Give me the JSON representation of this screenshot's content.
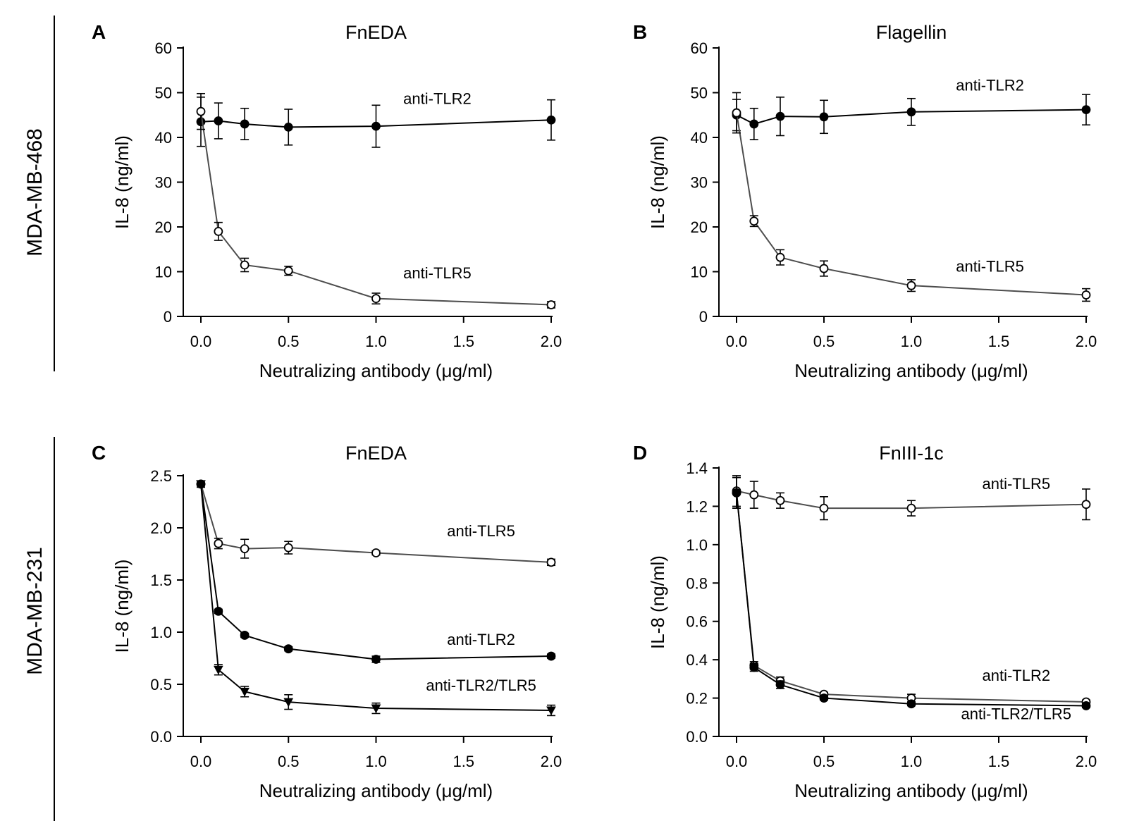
{
  "rows": [
    {
      "label": "MDA-MB-468"
    },
    {
      "label": "MDA-MB-231"
    }
  ],
  "colors": {
    "axis": "#000000",
    "line_closed": "#000000",
    "line_open": "#4d4d4d",
    "marker_open_fill": "#ffffff"
  },
  "chart_data": [
    {
      "panel": "A",
      "type": "line",
      "title": "FnEDA",
      "xlabel": "Neutralizing antibody (μg/ml)",
      "ylabel": "IL-8 (ng/ml)",
      "xlim": [
        -0.05,
        2.0
      ],
      "ylim": [
        0,
        60
      ],
      "xticks": [
        0.0,
        0.5,
        1.0,
        1.5,
        2.0
      ],
      "xtick_labels": [
        "0.0",
        "0.5",
        "1.0",
        "1.5",
        "2.0"
      ],
      "yticks": [
        0,
        10,
        20,
        30,
        40,
        50,
        60
      ],
      "ytick_labels": [
        "0",
        "10",
        "20",
        "30",
        "40",
        "50",
        "60"
      ],
      "series": [
        {
          "name": "anti-TLR2",
          "marker": "filled-circle",
          "x": [
            0,
            0.1,
            0.25,
            0.5,
            1.0,
            2.0
          ],
          "y": [
            43.5,
            43.7,
            43.0,
            42.3,
            42.5,
            43.9
          ],
          "err": [
            5.5,
            4.0,
            3.5,
            4.0,
            4.7,
            4.5
          ],
          "label_pos": {
            "x": 1.35,
            "y": 47.5
          }
        },
        {
          "name": "anti-TLR5",
          "marker": "open-circle",
          "x": [
            0,
            0.1,
            0.25,
            0.5,
            1.0,
            2.0
          ],
          "y": [
            45.8,
            19.0,
            11.5,
            10.2,
            4.0,
            2.6
          ],
          "err": [
            4.0,
            2.0,
            1.5,
            1.0,
            1.2,
            0.7
          ],
          "label_pos": {
            "x": 1.35,
            "y": 8.5
          }
        }
      ]
    },
    {
      "panel": "B",
      "type": "line",
      "title": "Flagellin",
      "xlabel": "Neutralizing antibody (μg/ml)",
      "ylabel": "IL-8 (ng/ml)",
      "xlim": [
        -0.05,
        2.0
      ],
      "ylim": [
        0,
        60
      ],
      "xticks": [
        0.0,
        0.5,
        1.0,
        1.5,
        2.0
      ],
      "xtick_labels": [
        "0.0",
        "0.5",
        "1.0",
        "1.5",
        "2.0"
      ],
      "yticks": [
        0,
        10,
        20,
        30,
        40,
        50,
        60
      ],
      "ytick_labels": [
        "0",
        "10",
        "20",
        "30",
        "40",
        "50",
        "60"
      ],
      "series": [
        {
          "name": "anti-TLR2",
          "marker": "filled-circle",
          "x": [
            0,
            0.1,
            0.25,
            0.5,
            1.0,
            2.0
          ],
          "y": [
            45.0,
            43.0,
            44.7,
            44.6,
            45.7,
            46.2
          ],
          "err": [
            3.5,
            3.5,
            4.3,
            3.7,
            3.0,
            3.4
          ],
          "label_pos": {
            "x": 1.45,
            "y": 50.5
          }
        },
        {
          "name": "anti-TLR5",
          "marker": "open-circle",
          "x": [
            0,
            0.1,
            0.25,
            0.5,
            1.0,
            2.0
          ],
          "y": [
            45.5,
            21.3,
            13.2,
            10.7,
            6.9,
            4.8
          ],
          "err": [
            4.5,
            1.2,
            1.7,
            1.7,
            1.3,
            1.4
          ],
          "label_pos": {
            "x": 1.45,
            "y": 10.0
          }
        }
      ]
    },
    {
      "panel": "C",
      "type": "line",
      "title": "FnEDA",
      "xlabel": "Neutralizing antibody (μg/ml)",
      "ylabel": "IL-8 (ng/ml)",
      "xlim": [
        -0.05,
        2.0
      ],
      "ylim": [
        0,
        2.5
      ],
      "xticks": [
        0.0,
        0.5,
        1.0,
        1.5,
        2.0
      ],
      "xtick_labels": [
        "0.0",
        "0.5",
        "1.0",
        "1.5",
        "2.0"
      ],
      "yticks": [
        0,
        0.5,
        1.0,
        1.5,
        2.0,
        2.5
      ],
      "ytick_labels": [
        "0.0",
        "0.5",
        "1.0",
        "1.5",
        "2.0",
        "2.5"
      ],
      "series": [
        {
          "name": "anti-TLR5",
          "marker": "open-circle",
          "x": [
            0,
            0.1,
            0.25,
            0.5,
            1.0,
            2.0
          ],
          "y": [
            2.42,
            1.85,
            1.8,
            1.81,
            1.76,
            1.67
          ],
          "err": [
            0.03,
            0.05,
            0.09,
            0.06,
            0.02,
            0.03
          ],
          "label_pos": {
            "x": 1.6,
            "y": 1.92
          }
        },
        {
          "name": "anti-TLR2",
          "marker": "filled-circle",
          "x": [
            0,
            0.1,
            0.25,
            0.5,
            1.0,
            2.0
          ],
          "y": [
            2.42,
            1.2,
            0.97,
            0.84,
            0.74,
            0.77
          ],
          "err": [
            0.03,
            0.02,
            0.02,
            0.02,
            0.03,
            0.02
          ],
          "label_pos": {
            "x": 1.6,
            "y": 0.88
          }
        },
        {
          "name": "anti-TLR2/TLR5",
          "marker": "filled-triangle",
          "x": [
            0,
            0.1,
            0.25,
            0.5,
            1.0,
            2.0
          ],
          "y": [
            2.42,
            0.64,
            0.43,
            0.33,
            0.27,
            0.25
          ],
          "err": [
            0.03,
            0.05,
            0.05,
            0.07,
            0.05,
            0.05
          ],
          "label_pos": {
            "x": 1.6,
            "y": 0.44
          }
        }
      ]
    },
    {
      "panel": "D",
      "type": "line",
      "title": "FnIII-1c",
      "xlabel": "Neutralizing antibody (μg/ml)",
      "ylabel": "IL-8 (ng/ml)",
      "xlim": [
        -0.05,
        2.0
      ],
      "ylim": [
        0,
        1.4
      ],
      "xticks": [
        0.0,
        0.5,
        1.0,
        1.5,
        2.0
      ],
      "xtick_labels": [
        "0.0",
        "0.5",
        "1.0",
        "1.5",
        "2.0"
      ],
      "yticks": [
        0,
        0.2,
        0.4,
        0.6,
        0.8,
        1.0,
        1.2,
        1.4
      ],
      "ytick_labels": [
        "0.0",
        "0.2",
        "0.4",
        "0.6",
        "0.8",
        "1.0",
        "1.2",
        "1.4"
      ],
      "series": [
        {
          "name": "anti-TLR5",
          "marker": "open-circle",
          "x": [
            0,
            0.1,
            0.25,
            0.5,
            1.0,
            2.0
          ],
          "y": [
            1.28,
            1.26,
            1.23,
            1.19,
            1.19,
            1.21
          ],
          "err": [
            0.08,
            0.07,
            0.04,
            0.06,
            0.04,
            0.08
          ],
          "label_pos": {
            "x": 1.6,
            "y": 1.29
          }
        },
        {
          "name": "anti-TLR2",
          "marker": "open-circle",
          "x": [
            0,
            0.1,
            0.25,
            0.5,
            1.0,
            2.0
          ],
          "y": [
            1.27,
            0.37,
            0.29,
            0.22,
            0.2,
            0.18
          ],
          "err": [
            0.08,
            0.02,
            0.02,
            0.01,
            0.02,
            0.01
          ],
          "label_pos": {
            "x": 1.6,
            "y": 0.29
          }
        },
        {
          "name": "anti-TLR2/TLR5",
          "marker": "filled-circle",
          "x": [
            0,
            0.1,
            0.25,
            0.5,
            1.0,
            2.0
          ],
          "y": [
            1.27,
            0.36,
            0.27,
            0.2,
            0.17,
            0.16
          ],
          "err": [
            0.08,
            0.02,
            0.02,
            0.01,
            0.01,
            0.01
          ],
          "label_pos": {
            "x": 1.6,
            "y": 0.09
          }
        }
      ]
    }
  ]
}
